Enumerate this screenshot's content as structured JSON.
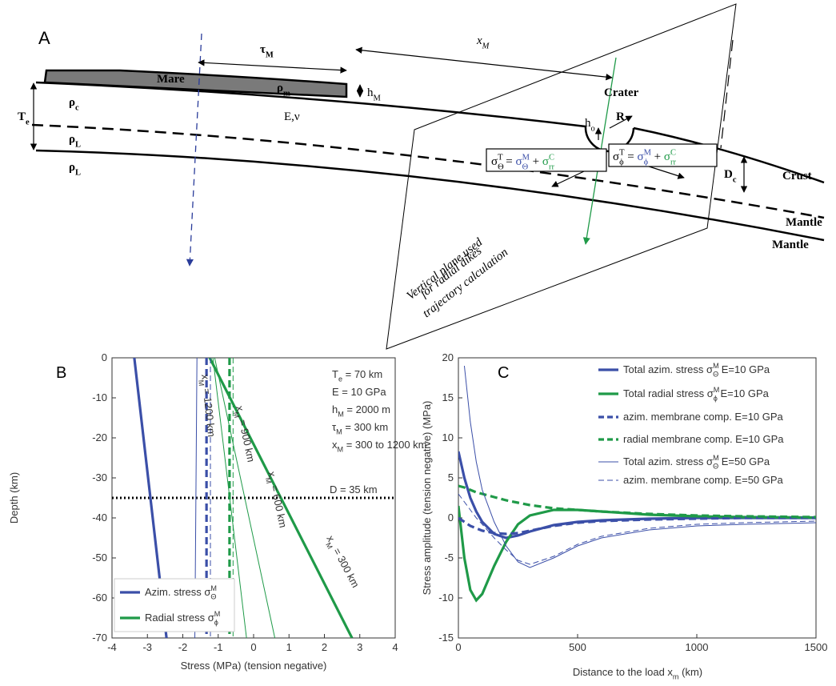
{
  "panel_a": {
    "label": "A",
    "mare": "Mare",
    "rho_m": [
      "ρ",
      {
        "sub": "m"
      }
    ],
    "h_m": [
      "h",
      {
        "sub": "M"
      }
    ],
    "tau_m": [
      "τ",
      {
        "sub": "M"
      }
    ],
    "x_m": [
      "x",
      {
        "sub": "M"
      }
    ],
    "crater": "Crater",
    "r": "R",
    "h_o": [
      "h",
      {
        "sub": "o"
      }
    ],
    "t_e": [
      "T",
      {
        "sub": "e"
      }
    ],
    "rho_c": [
      "ρ",
      {
        "sub": "c"
      }
    ],
    "rho_l_upper": [
      "ρ",
      {
        "sub": "L"
      }
    ],
    "rho_l_lower": [
      "ρ",
      {
        "sub": "L"
      }
    ],
    "elastic": "E,ν",
    "d_c": [
      "D",
      {
        "sub": "c"
      }
    ],
    "crust": "Crust",
    "mantle_upper": "Mantle",
    "mantle_lower": "Mantle",
    "formula_theta": [
      "σ",
      {
        "sub": "Θ"
      },
      {
        "sup": "T"
      },
      " = ",
      {
        "text": "σ",
        "color": "#3b4fa8"
      },
      {
        "sub": "Θ",
        "color": "#3b4fa8"
      },
      {
        "sup": "M",
        "color": "#3b4fa8"
      },
      " + ",
      {
        "text": "σ",
        "color": "#1f9a48"
      },
      {
        "sub": "rr",
        "color": "#1f9a48"
      },
      {
        "sup": "C",
        "color": "#1f9a48"
      }
    ],
    "formula_phi": [
      "σ",
      {
        "sub": "ϕ"
      },
      {
        "sup": "T"
      },
      " = ",
      {
        "text": "σ",
        "color": "#3b4fa8"
      },
      {
        "sub": "ϕ",
        "color": "#3b4fa8"
      },
      {
        "sup": "M",
        "color": "#3b4fa8"
      },
      " + ",
      {
        "text": "σ",
        "color": "#1f9a48"
      },
      {
        "sub": "rr",
        "color": "#1f9a48"
      },
      {
        "sup": "C",
        "color": "#1f9a48"
      }
    ],
    "plane_text": [
      "Vertical plane used",
      "for radial dikes",
      "trajectory calculation"
    ]
  },
  "chart_data": [
    {
      "type": "line",
      "panel": "B",
      "x_label": "Stress (MPa) (tension negative)",
      "y_label": "Depth (km)",
      "xlim": [
        -4,
        4
      ],
      "ylim": [
        -70,
        0
      ],
      "xticks": [
        -4,
        -3,
        -2,
        -1,
        0,
        1,
        2,
        3,
        4
      ],
      "yticks": [
        0,
        -10,
        -20,
        -30,
        -40,
        -50,
        -60,
        -70
      ],
      "reference_line": {
        "value": -35,
        "label": "D = 35 km"
      },
      "annotations": [
        [
          "T",
          {
            "sub": "e"
          },
          " = 70 km"
        ],
        [
          "E = 10 GPa"
        ],
        [
          "h",
          {
            "sub": "M"
          },
          " = 2000 m"
        ],
        [
          "τ",
          {
            "sub": "M"
          },
          " = 300 km"
        ],
        [
          "x",
          {
            "sub": "M"
          },
          " = 300 to 1200 km"
        ],
        [
          "x",
          {
            "sub": "M"
          },
          " = 1200 km"
        ],
        [
          "x",
          {
            "sub": "M"
          },
          " = 900 km"
        ],
        [
          "x",
          {
            "sub": "M"
          },
          " = 600 km"
        ],
        [
          "x",
          {
            "sub": "M"
          },
          " = 300 km"
        ]
      ],
      "series": [
        {
          "name": [
            "Azim. stress σ",
            {
              "sup": "M"
            },
            {
              "sub": "Θ"
            }
          ],
          "color": "#3b4fa8",
          "weight": "thick",
          "style": "solid",
          "x": [
            -3.37,
            -2.46
          ],
          "values": [
            0,
            -70
          ]
        },
        {
          "name": [
            "Radial stress σ",
            {
              "sup": "M"
            },
            {
              "sub": "ϕ"
            }
          ],
          "color": "#1f9a48",
          "weight": "thick",
          "style": "solid",
          "x": [
            -1.24,
            2.78
          ],
          "values": [
            0,
            -70
          ]
        },
        {
          "color": "#3b4fa8",
          "weight": "thin",
          "style": "solid",
          "x": [
            -1.6,
            -1.66
          ],
          "values": [
            0,
            -70
          ]
        },
        {
          "color": "#3b4fa8",
          "weight": "thick",
          "style": "dashed",
          "x": [
            -1.33,
            -1.33
          ],
          "values": [
            0,
            -70
          ]
        },
        {
          "color": "#3b4fa8",
          "weight": "thin",
          "style": "dashed",
          "x": [
            -1.22,
            -1.22
          ],
          "values": [
            0,
            -70
          ]
        },
        {
          "color": "#1f9a48",
          "weight": "thick",
          "style": "dashed",
          "x": [
            -0.68,
            -0.68
          ],
          "values": [
            0,
            -70
          ]
        },
        {
          "color": "#1f9a48",
          "weight": "thin",
          "style": "dashed",
          "x": [
            -0.58,
            -0.58
          ],
          "values": [
            0,
            -70
          ]
        },
        {
          "color": "#1f9a48",
          "weight": "thin",
          "style": "solid",
          "x": [
            -1.15,
            -0.2
          ],
          "values": [
            0,
            -70
          ]
        },
        {
          "color": "#1f9a48",
          "weight": "thin",
          "style": "solid",
          "x": [
            -1.1,
            0.6
          ],
          "values": [
            0,
            -70
          ]
        }
      ]
    },
    {
      "type": "line",
      "panel": "C",
      "x_label": [
        "Distance to the load x",
        {
          "sub": "m"
        },
        " (km)"
      ],
      "y_label": "Stress amplitude (tension negative) (MPa)",
      "xlim": [
        0,
        1500
      ],
      "ylim": [
        -15,
        20
      ],
      "xticks": [
        0,
        500,
        1000,
        1500
      ],
      "yticks": [
        20,
        15,
        10,
        5,
        0,
        -5,
        -10,
        -15
      ],
      "x": [
        0,
        25,
        50,
        75,
        100,
        150,
        200,
        250,
        300,
        400,
        500,
        600,
        800,
        1000,
        1200,
        1500
      ],
      "series": [
        {
          "name": [
            "Total azim. stress σ",
            {
              "sup": "M"
            },
            {
              "sub": "Θ"
            },
            " E=10 GPa"
          ],
          "color": "#3b4fa8",
          "weight": "thick",
          "style": "solid",
          "values": [
            8.3,
            5,
            2.5,
            0.8,
            -0.5,
            -2,
            -2.5,
            -2.2,
            -1.7,
            -0.9,
            -0.5,
            -0.3,
            -0.1,
            0,
            0,
            0
          ]
        },
        {
          "name": [
            "Total radial stress σ",
            {
              "sup": "M"
            },
            {
              "sub": "ϕ"
            },
            " E=10 GPa"
          ],
          "color": "#1f9a48",
          "weight": "thick",
          "style": "solid",
          "values": [
            1.5,
            -5,
            -9,
            -10.3,
            -9.5,
            -6,
            -3,
            -0.8,
            0.3,
            1,
            1,
            0.8,
            0.4,
            0.2,
            0.1,
            0.05
          ]
        },
        {
          "name": [
            "azim. membrane comp. E=10 GPa"
          ],
          "color": "#3b4fa8",
          "weight": "thick",
          "style": "dashed",
          "values": [
            0,
            -0.5,
            -1,
            -1.3,
            -1.6,
            -1.9,
            -2,
            -1.9,
            -1.6,
            -1,
            -0.6,
            -0.4,
            -0.2,
            -0.1,
            0,
            0
          ]
        },
        {
          "name": [
            "radial membrane comp. E=10 GPa"
          ],
          "color": "#1f9a48",
          "weight": "thick",
          "style": "dashed",
          "values": [
            4,
            3.8,
            3.5,
            3.2,
            3,
            2.6,
            2.2,
            1.9,
            1.6,
            1.2,
            1,
            0.8,
            0.5,
            0.3,
            0.2,
            0.1
          ]
        },
        {
          "name": [
            "Total azim. stress σ",
            {
              "sup": "M"
            },
            {
              "sub": "Θ"
            },
            " E=50 GPa"
          ],
          "color": "#3b4fa8",
          "weight": "thin",
          "style": "solid",
          "values": [
            null,
            19,
            12,
            7,
            3.5,
            -0.5,
            -3.5,
            -5.5,
            -6.2,
            -5,
            -3.5,
            -2.5,
            -1.5,
            -1,
            -0.8,
            -0.6
          ]
        },
        {
          "name": [
            "azim. membrane comp. E=50 GPa"
          ],
          "color": "#3b4fa8",
          "weight": "thin",
          "style": "dashed",
          "values": [
            3,
            2,
            1,
            0,
            -0.8,
            -2.5,
            -4,
            -5.3,
            -5.8,
            -4.8,
            -3.3,
            -2.3,
            -1.3,
            -0.8,
            -0.6,
            -0.4
          ]
        }
      ]
    }
  ]
}
